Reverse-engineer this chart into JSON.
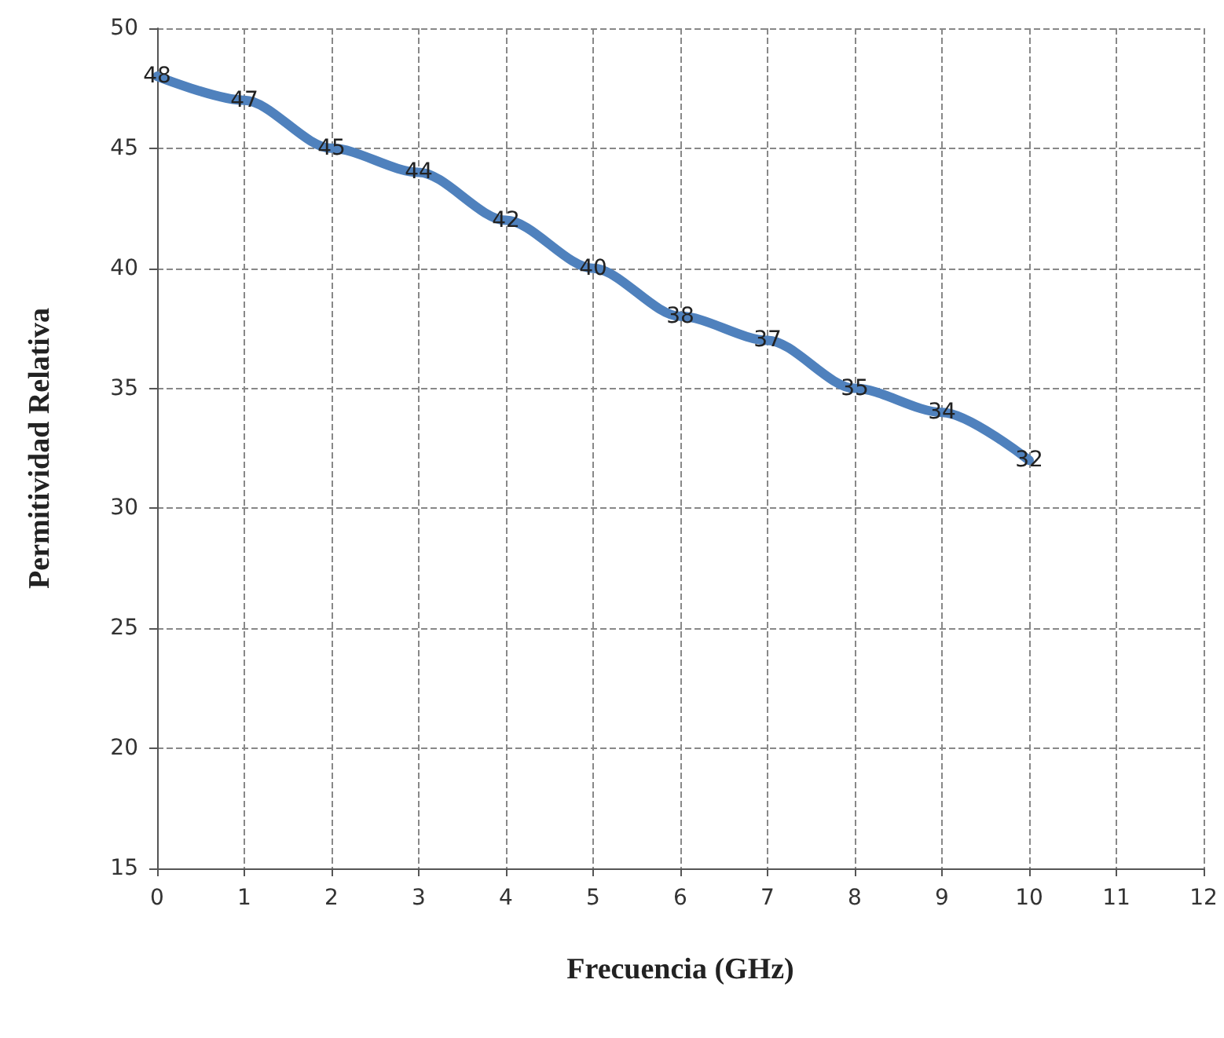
{
  "chart_data": {
    "type": "line",
    "xlabel": "Frecuencia (GHz)",
    "ylabel": "Permitividad Relativa",
    "x": [
      0,
      1,
      2,
      3,
      4,
      5,
      6,
      7,
      8,
      9,
      10
    ],
    "series": [
      {
        "color": "#4f81bd",
        "values": [
          48,
          47,
          45,
          44,
          42,
          40,
          38,
          37,
          35,
          34,
          32
        ]
      }
    ],
    "xlim": [
      0,
      12
    ],
    "xticks": [
      0,
      1,
      2,
      3,
      4,
      5,
      6,
      7,
      8,
      9,
      10,
      11,
      12
    ],
    "ylim": [
      15,
      50
    ],
    "yticks": [
      15,
      20,
      25,
      30,
      35,
      40,
      45,
      50
    ],
    "grid": true,
    "data_labels": true,
    "marker": "none",
    "line_style": "solid"
  }
}
